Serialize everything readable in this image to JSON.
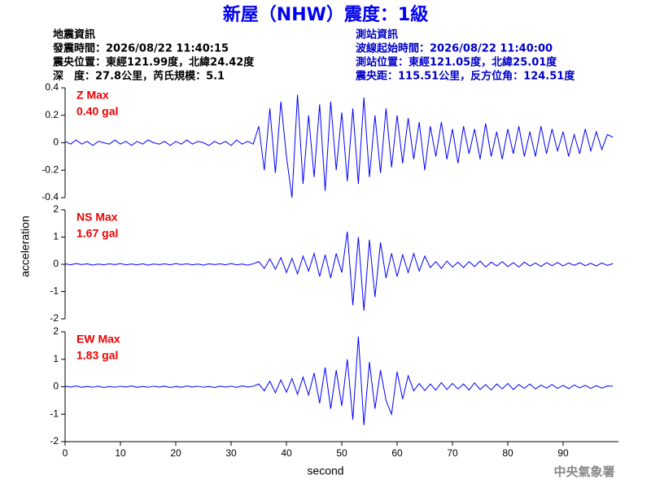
{
  "header": {
    "title": "新屋（NHW）震度：1級",
    "earthquake_info": [
      "地震資訊",
      "發震時間：2026/08/22 11:40:15",
      "震央位置：東經121.99度，北緯24.42度",
      "深　度：27.8公里，芮氏規模：5.1"
    ],
    "station_info": [
      "測站資訊",
      "波線起始時間：2026/08/22 11:40:00",
      "測站位置：東經121.05度，北緯25.01度",
      "震央距：115.51公里，反方位角：124.51度"
    ]
  },
  "watermark": "中央氣象署",
  "chart_data": [
    {
      "type": "line",
      "annotations": [
        "Z Max",
        "0.40 gal"
      ],
      "annotation_color": "#ee0000",
      "xlim": [
        0,
        100
      ],
      "ylim": [
        -0.4,
        0.4
      ],
      "yticks": [
        0.4,
        0.2,
        0,
        -0.2,
        -0.4
      ],
      "x": [
        0,
        1,
        2,
        3,
        4,
        5,
        6,
        7,
        8,
        9,
        10,
        11,
        12,
        13,
        14,
        15,
        16,
        17,
        18,
        19,
        20,
        21,
        22,
        23,
        24,
        25,
        26,
        27,
        28,
        29,
        30,
        31,
        32,
        33,
        34,
        35,
        36,
        37,
        38,
        39,
        40,
        41,
        42,
        43,
        44,
        45,
        46,
        47,
        48,
        49,
        50,
        51,
        52,
        53,
        54,
        55,
        56,
        57,
        58,
        59,
        60,
        61,
        62,
        63,
        64,
        65,
        66,
        67,
        68,
        69,
        70,
        71,
        72,
        73,
        74,
        75,
        76,
        77,
        78,
        79,
        80,
        81,
        82,
        83,
        84,
        85,
        86,
        87,
        88,
        89,
        90,
        91,
        92,
        93,
        94,
        95,
        96,
        97,
        98,
        99
      ],
      "series": [
        {
          "color": "#0000ff",
          "values": [
            0.01,
            -0.01,
            0.02,
            -0.01,
            0.01,
            -0.02,
            0.01,
            0,
            -0.01,
            0.02,
            -0.01,
            0.01,
            -0.02,
            0.01,
            -0.01,
            0.02,
            0,
            -0.01,
            0.01,
            -0.02,
            0.01,
            -0.01,
            0.02,
            -0.01,
            0.01,
            0,
            -0.02,
            0.01,
            -0.01,
            0.01,
            -0.02,
            0.02,
            -0.01,
            0.01,
            -0.01,
            0.12,
            -0.2,
            0.25,
            -0.22,
            0.3,
            -0.1,
            -0.4,
            0.35,
            -0.3,
            0.2,
            -0.25,
            0.28,
            -0.35,
            0.3,
            -0.2,
            0.22,
            -0.28,
            0.25,
            -0.3,
            0.33,
            -0.25,
            0.2,
            -0.22,
            0.25,
            -0.18,
            0.2,
            -0.15,
            0.18,
            -0.12,
            0.15,
            -0.2,
            0.12,
            -0.1,
            0.15,
            -0.12,
            0.1,
            -0.15,
            0.12,
            -0.08,
            0.1,
            -0.12,
            0.14,
            -0.1,
            0.08,
            -0.12,
            0.1,
            -0.08,
            0.12,
            -0.1,
            0.08,
            -0.1,
            0.12,
            -0.08,
            0.1,
            -0.06,
            0.08,
            -0.1,
            0.06,
            -0.08,
            0.1,
            -0.06,
            0.08,
            -0.05,
            0.06,
            0.04
          ]
        }
      ]
    },
    {
      "type": "line",
      "annotations": [
        "NS Max",
        "1.67 gal"
      ],
      "annotation_color": "#ee0000",
      "ylabel": "acceleration",
      "xlim": [
        0,
        100
      ],
      "ylim": [
        -2,
        2
      ],
      "yticks": [
        2,
        1,
        0,
        -1,
        -2
      ],
      "x": [
        0,
        1,
        2,
        3,
        4,
        5,
        6,
        7,
        8,
        9,
        10,
        11,
        12,
        13,
        14,
        15,
        16,
        17,
        18,
        19,
        20,
        21,
        22,
        23,
        24,
        25,
        26,
        27,
        28,
        29,
        30,
        31,
        32,
        33,
        34,
        35,
        36,
        37,
        38,
        39,
        40,
        41,
        42,
        43,
        44,
        45,
        46,
        47,
        48,
        49,
        50,
        51,
        52,
        53,
        54,
        55,
        56,
        57,
        58,
        59,
        60,
        61,
        62,
        63,
        64,
        65,
        66,
        67,
        68,
        69,
        70,
        71,
        72,
        73,
        74,
        75,
        76,
        77,
        78,
        79,
        80,
        81,
        82,
        83,
        84,
        85,
        86,
        87,
        88,
        89,
        90,
        91,
        92,
        93,
        94,
        95,
        96,
        97,
        98,
        99
      ],
      "series": [
        {
          "color": "#0000ff",
          "values": [
            0.02,
            -0.02,
            0.03,
            -0.01,
            0.02,
            -0.03,
            0.01,
            -0.02,
            0.02,
            -0.01,
            0.03,
            -0.02,
            0.01,
            -0.02,
            0.02,
            -0.03,
            0.01,
            -0.01,
            0.02,
            -0.02,
            0.03,
            -0.01,
            0.02,
            -0.02,
            0.01,
            -0.03,
            0.02,
            -0.01,
            0.02,
            -0.02,
            0.03,
            -0.02,
            0.01,
            -0.03,
            0.02,
            0.1,
            -0.15,
            0.2,
            -0.18,
            0.25,
            -0.3,
            0.22,
            -0.35,
            0.3,
            -0.25,
            0.4,
            -0.45,
            0.35,
            -0.5,
            0.4,
            -0.3,
            1.2,
            -1.5,
            1.0,
            -1.7,
            0.9,
            -1.2,
            0.8,
            -0.5,
            0.4,
            -0.45,
            0.35,
            -0.3,
            0.4,
            -0.25,
            0.3,
            -0.12,
            0.1,
            -0.15,
            0.12,
            -0.1,
            0.08,
            -0.12,
            0.1,
            -0.08,
            0.12,
            -0.1,
            0.08,
            -0.06,
            0.1,
            -0.08,
            0.06,
            -0.1,
            0.08,
            -0.06,
            0.05,
            -0.08,
            0.06,
            -0.05,
            0.07,
            -0.06,
            0.05,
            -0.04,
            0.06,
            -0.05,
            0.04,
            -0.06,
            0.05,
            -0.04,
            0.03
          ]
        }
      ]
    },
    {
      "type": "line",
      "annotations": [
        "EW Max",
        "1.83 gal"
      ],
      "annotation_color": "#ee0000",
      "xlabel": "second",
      "xlim": [
        0,
        100
      ],
      "xticks": [
        0,
        10,
        20,
        30,
        40,
        50,
        60,
        70,
        80,
        90
      ],
      "ylim": [
        -2,
        2
      ],
      "yticks": [
        2,
        1,
        0,
        -1,
        -2
      ],
      "x": [
        0,
        1,
        2,
        3,
        4,
        5,
        6,
        7,
        8,
        9,
        10,
        11,
        12,
        13,
        14,
        15,
        16,
        17,
        18,
        19,
        20,
        21,
        22,
        23,
        24,
        25,
        26,
        27,
        28,
        29,
        30,
        31,
        32,
        33,
        34,
        35,
        36,
        37,
        38,
        39,
        40,
        41,
        42,
        43,
        44,
        45,
        46,
        47,
        48,
        49,
        50,
        51,
        52,
        53,
        54,
        55,
        56,
        57,
        58,
        59,
        60,
        61,
        62,
        63,
        64,
        65,
        66,
        67,
        68,
        69,
        70,
        71,
        72,
        73,
        74,
        75,
        76,
        77,
        78,
        79,
        80,
        81,
        82,
        83,
        84,
        85,
        86,
        87,
        88,
        89,
        90,
        91,
        92,
        93,
        94,
        95,
        96,
        97,
        98,
        99
      ],
      "series": [
        {
          "color": "#0000ff",
          "values": [
            0.02,
            -0.01,
            0.03,
            -0.02,
            0.01,
            -0.02,
            0.02,
            -0.03,
            0.01,
            -0.02,
            0.02,
            -0.01,
            0.03,
            -0.02,
            0.01,
            -0.02,
            0.02,
            -0.01,
            0.02,
            -0.03,
            0.01,
            -0.02,
            0.03,
            -0.01,
            0.02,
            -0.02,
            0.01,
            -0.03,
            0.02,
            -0.01,
            0.02,
            -0.02,
            0.03,
            -0.01,
            0.02,
            0.1,
            -0.15,
            0.2,
            -0.22,
            0.25,
            -0.2,
            0.3,
            -0.28,
            0.35,
            -0.3,
            0.5,
            -0.6,
            0.7,
            -0.8,
            0.6,
            -0.7,
            1.0,
            -1.2,
            1.83,
            -1.4,
            0.9,
            -0.8,
            0.6,
            -0.5,
            -1.0,
            0.55,
            -0.45,
            0.4,
            -0.15,
            0.12,
            -0.14,
            0.1,
            -0.12,
            0.15,
            -0.1,
            0.12,
            -0.08,
            0.1,
            -0.12,
            0.14,
            -0.1,
            0.08,
            -0.12,
            0.1,
            -0.08,
            0.12,
            -0.1,
            0.08,
            -0.06,
            0.1,
            -0.08,
            0.06,
            -0.05,
            0.08,
            -0.06,
            0.05,
            -0.07,
            0.06,
            -0.04,
            0.05,
            -0.06,
            0.04,
            -0.05,
            0.03,
            0.02
          ]
        }
      ]
    }
  ]
}
